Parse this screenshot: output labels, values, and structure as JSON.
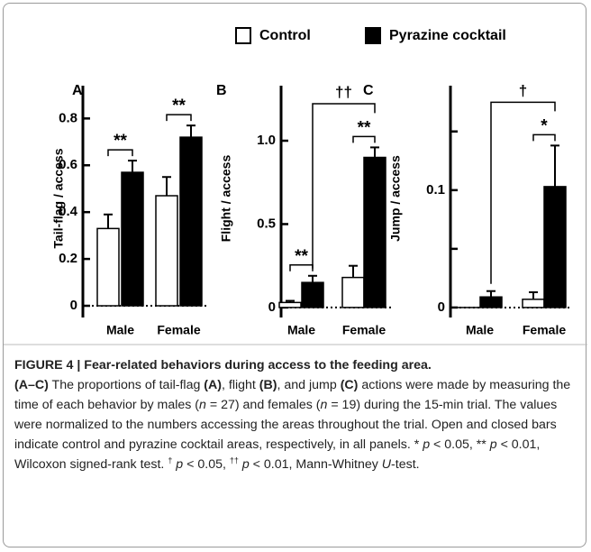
{
  "chart_data": [
    {
      "type": "bar",
      "panel": "A",
      "y_label": "Tail-flag / access",
      "categories": [
        "Male",
        "Female"
      ],
      "series": [
        {
          "name": "Control",
          "color": "#ffffff",
          "values": [
            0.33,
            0.47
          ],
          "errors": [
            0.06,
            0.08
          ]
        },
        {
          "name": "Pyrazine cocktail",
          "color": "#000000",
          "values": [
            0.57,
            0.72
          ],
          "errors": [
            0.05,
            0.05
          ]
        }
      ],
      "ylim": [
        -0.05,
        0.94
      ],
      "yticks": [
        0,
        0.2,
        0.4,
        0.6,
        0.8
      ],
      "within": [
        "**",
        "**"
      ]
    },
    {
      "type": "bar",
      "panel": "B",
      "y_label": "Flight / access",
      "categories": [
        "Male",
        "Female"
      ],
      "series": [
        {
          "name": "Control",
          "color": "#ffffff",
          "values": [
            0.03,
            0.18
          ],
          "errors": [
            0.01,
            0.07
          ]
        },
        {
          "name": "Pyrazine cocktail",
          "color": "#000000",
          "values": [
            0.15,
            0.9
          ],
          "errors": [
            0.04,
            0.06
          ]
        }
      ],
      "ylim": [
        -0.06,
        1.33
      ],
      "yticks": [
        0,
        0.5,
        {
          "value": 1,
          "label": "1.0"
        }
      ],
      "within": [
        "**",
        "**"
      ],
      "between": "††"
    },
    {
      "type": "bar",
      "panel": "C",
      "y_label": "Jump / access",
      "categories": [
        "Male",
        "Female"
      ],
      "series": [
        {
          "name": "Control",
          "color": "#ffffff",
          "values": [
            0,
            0.007
          ],
          "errors": [
            0,
            0.006
          ]
        },
        {
          "name": "Pyrazine cocktail",
          "color": "#000000",
          "values": [
            0.009,
            0.103
          ],
          "errors": [
            0.005,
            0.035
          ]
        }
      ],
      "ylim": [
        -0.0085,
        0.189
      ],
      "yticks": [
        0,
        0.1
      ],
      "minor_yticks": [
        0.05,
        0.15
      ],
      "within": [
        null,
        "*"
      ],
      "between": "†"
    }
  ],
  "caption": {
    "title": "FIGURE 4 | Fear-related behaviors during access to the feeding area.",
    "parts": [
      "(A–C)",
      " The proportions of tail-flag ",
      "(A)",
      ", flight ",
      "(B)",
      ", and jump ",
      "(C)",
      " actions were made by measuring the time of each behavior by males (",
      "n",
      " = 27) and females (",
      "n",
      " = 19) during the 15-min trial. The values were normalized to the numbers accessing the areas throughout the trial. Open and closed bars indicate control and pyrazine cocktail areas, respectively, in all panels. * ",
      "p",
      " < 0.05, ** ",
      "p",
      " < 0.01, Wilcoxon signed-rank test. ",
      "†",
      " ",
      "p",
      " < 0.05, ",
      "††",
      " ",
      "p",
      " < 0.01, Mann-Whitney ",
      "U",
      "-test."
    ]
  }
}
